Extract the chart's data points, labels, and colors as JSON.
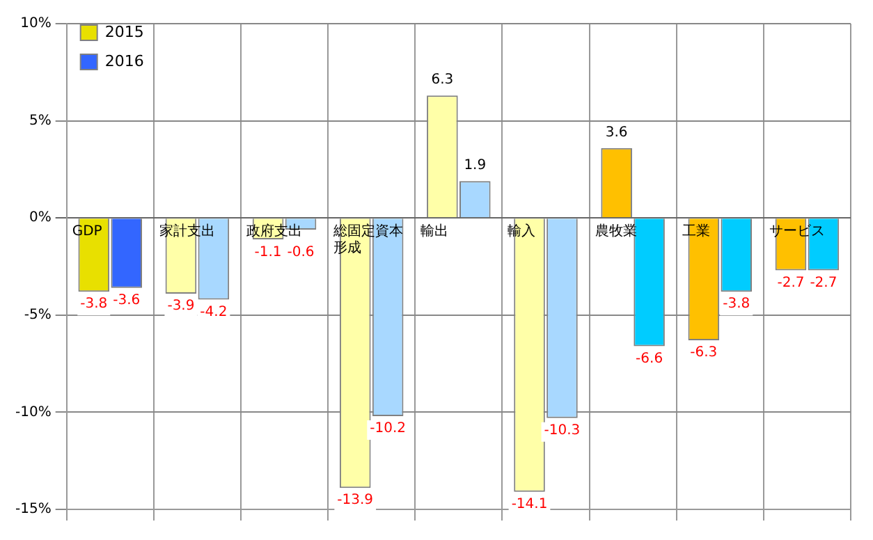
{
  "chart_data": {
    "type": "bar",
    "categories": [
      "GDP",
      "家計支出",
      "政府支出",
      "総固定資本形成",
      "輸出",
      "輸入",
      "農牧業",
      "工業",
      "サービス"
    ],
    "series": [
      {
        "name": "2015",
        "colors": [
          "#e8e000",
          "#ffffa8",
          "#ffffa8",
          "#ffffa8",
          "#ffffa8",
          "#ffffa8",
          "#ffc000",
          "#ffc000",
          "#ffc000"
        ],
        "values": [
          -3.8,
          -3.9,
          -1.1,
          -13.9,
          6.3,
          -14.1,
          3.6,
          -6.3,
          -2.7
        ]
      },
      {
        "name": "2016",
        "colors": [
          "#3366ff",
          "#a8d8ff",
          "#a8d8ff",
          "#a8d8ff",
          "#a8d8ff",
          "#a8d8ff",
          "#00ccff",
          "#00ccff",
          "#00ccff"
        ],
        "values": [
          -3.6,
          -4.2,
          -0.6,
          -10.2,
          1.9,
          -10.3,
          -6.6,
          -3.8,
          -2.7
        ]
      }
    ],
    "ylim": [
      -15,
      10
    ],
    "yticks": [
      {
        "value": -15,
        "label": "-15%"
      },
      {
        "value": -10,
        "label": "-10%"
      },
      {
        "value": -5,
        "label": "-5%"
      },
      {
        "value": 0,
        "label": "0%"
      },
      {
        "value": 5,
        "label": "5%"
      },
      {
        "value": 10,
        "label": "10%"
      }
    ],
    "grid": true,
    "legend": "top left",
    "data_labels": true
  }
}
